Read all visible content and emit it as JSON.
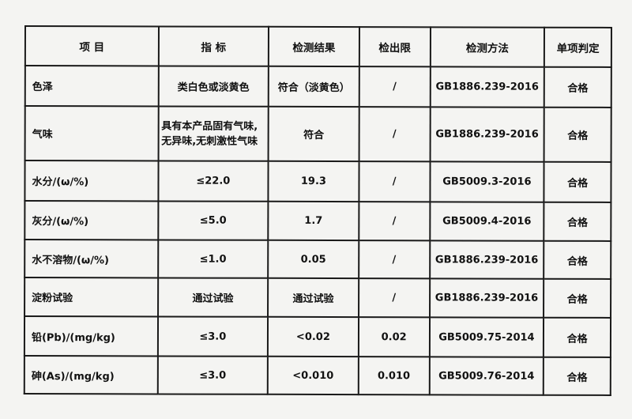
{
  "headers": [
    "项 目",
    "指 标",
    "检测结果",
    "检出限",
    "检测方法",
    "单项判定"
  ],
  "rows": [
    [
      "色泽",
      "类白色或淡黄色",
      "符合（淡黄色）",
      "/",
      "GB1886.239-2016",
      "合格"
    ],
    [
      "气味",
      "具有本产品固有气味,无异味,无刺激性气味",
      "符合",
      "/",
      "GB1886.239-2016",
      "合格"
    ],
    [
      "水分/(ω/%)",
      "≤22.0",
      "19.3",
      "/",
      "GB5009.3-2016",
      "合格"
    ],
    [
      "灰分/(ω/%)",
      "≤5.0",
      "1.7",
      "/",
      "GB5009.4-2016",
      "合格"
    ],
    [
      "水不溶物/(ω/%)",
      "≤1.0",
      "0.05",
      "/",
      "GB1886.239-2016",
      "合格"
    ],
    [
      "淀粉试验",
      "通过试验",
      "通过试验",
      "/",
      "GB1886.239-2016",
      "合格"
    ],
    [
      "铅(Pb)/(mg/kg)",
      "≤3.0",
      "<0.02",
      "0.02",
      "GB5009.75-2014",
      "合格"
    ],
    [
      "砷(As)/(mg/kg)",
      "≤3.0",
      "<0.010",
      "0.010",
      "GB5009.76-2014",
      "合格"
    ]
  ]
}
